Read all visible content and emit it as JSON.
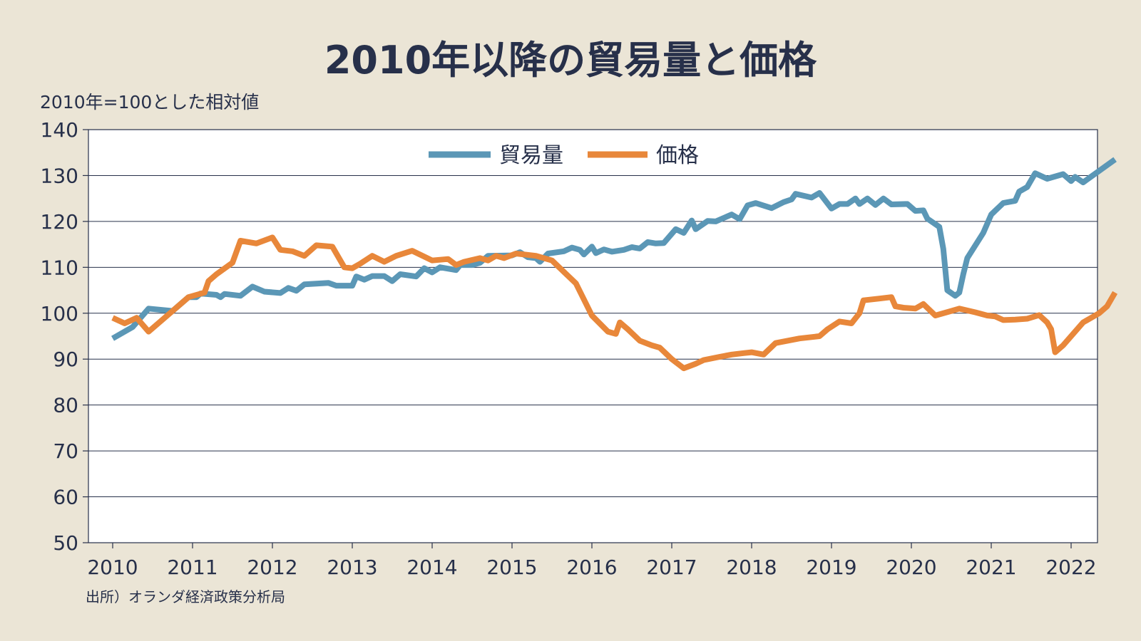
{
  "chart_data": {
    "type": "line",
    "title": "2010年以降の貿易量と価格",
    "ylabel": "2010年=100とした相対値",
    "source": "出所）オランダ経済政策分析局",
    "ylim": [
      50,
      140
    ],
    "xlim": [
      2010,
      2022
    ],
    "yticks": [
      50,
      60,
      70,
      80,
      90,
      100,
      110,
      120,
      130,
      140
    ],
    "xticks": [
      2010,
      2011,
      2012,
      2013,
      2014,
      2015,
      2016,
      2017,
      2018,
      2019,
      2020,
      2021,
      2022
    ],
    "grid": true,
    "legend_position": "top-center",
    "series": [
      {
        "name": "貿易量",
        "color": "#5b97b6",
        "points": [
          [
            2010.0,
            94.5
          ],
          [
            2010.25,
            97
          ],
          [
            2010.45,
            101
          ],
          [
            2010.75,
            100.5
          ],
          [
            2010.95,
            103.5
          ],
          [
            2011.05,
            103.5
          ],
          [
            2011.1,
            104.3
          ],
          [
            2011.3,
            104
          ],
          [
            2011.35,
            103.5
          ],
          [
            2011.4,
            104.2
          ],
          [
            2011.6,
            103.8
          ],
          [
            2011.75,
            105.8
          ],
          [
            2011.9,
            104.7
          ],
          [
            2012.1,
            104.4
          ],
          [
            2012.2,
            105.5
          ],
          [
            2012.3,
            104.9
          ],
          [
            2012.4,
            106.3
          ],
          [
            2012.7,
            106.6
          ],
          [
            2012.8,
            106
          ],
          [
            2013.0,
            106
          ],
          [
            2013.05,
            108
          ],
          [
            2013.15,
            107.3
          ],
          [
            2013.25,
            108.1
          ],
          [
            2013.4,
            108.1
          ],
          [
            2013.5,
            107
          ],
          [
            2013.6,
            108.5
          ],
          [
            2013.8,
            108
          ],
          [
            2013.9,
            109.8
          ],
          [
            2014.0,
            108.9
          ],
          [
            2014.1,
            110
          ],
          [
            2014.3,
            109.4
          ],
          [
            2014.35,
            110.5
          ],
          [
            2014.5,
            110.5
          ],
          [
            2014.6,
            111
          ],
          [
            2014.7,
            112.5
          ],
          [
            2015.0,
            112.6
          ],
          [
            2015.1,
            113.3
          ],
          [
            2015.2,
            112.2
          ],
          [
            2015.3,
            112
          ],
          [
            2015.35,
            111.2
          ],
          [
            2015.45,
            113
          ],
          [
            2015.65,
            113.5
          ],
          [
            2015.75,
            114.3
          ],
          [
            2015.85,
            113.8
          ],
          [
            2015.9,
            112.8
          ],
          [
            2016.0,
            114.5
          ],
          [
            2016.05,
            113.1
          ],
          [
            2016.15,
            113.9
          ],
          [
            2016.25,
            113.4
          ],
          [
            2016.4,
            113.8
          ],
          [
            2016.5,
            114.4
          ],
          [
            2016.6,
            114.1
          ],
          [
            2016.7,
            115.5
          ],
          [
            2016.8,
            115.2
          ],
          [
            2016.9,
            115.3
          ],
          [
            2017.05,
            118.3
          ],
          [
            2017.15,
            117.5
          ],
          [
            2017.25,
            120.2
          ],
          [
            2017.3,
            118.3
          ],
          [
            2017.45,
            120.1
          ],
          [
            2017.55,
            120
          ],
          [
            2017.75,
            121.5
          ],
          [
            2017.85,
            120.5
          ],
          [
            2017.95,
            123.5
          ],
          [
            2018.05,
            124
          ],
          [
            2018.25,
            122.9
          ],
          [
            2018.4,
            124.2
          ],
          [
            2018.5,
            124.8
          ],
          [
            2018.55,
            126
          ],
          [
            2018.75,
            125.2
          ],
          [
            2018.85,
            126.2
          ],
          [
            2019.0,
            122.8
          ],
          [
            2019.1,
            123.8
          ],
          [
            2019.2,
            123.8
          ],
          [
            2019.3,
            125
          ],
          [
            2019.35,
            123.8
          ],
          [
            2019.45,
            125
          ],
          [
            2019.55,
            123.6
          ],
          [
            2019.65,
            125
          ],
          [
            2019.75,
            123.7
          ],
          [
            2019.95,
            123.8
          ],
          [
            2020.05,
            122.3
          ],
          [
            2020.15,
            122.4
          ],
          [
            2020.2,
            120.6
          ],
          [
            2020.35,
            118.8
          ],
          [
            2020.4,
            114
          ],
          [
            2020.45,
            105
          ],
          [
            2020.55,
            103.8
          ],
          [
            2020.6,
            104.5
          ],
          [
            2020.65,
            108.5
          ],
          [
            2020.7,
            112
          ],
          [
            2020.9,
            117.5
          ],
          [
            2021.0,
            121.5
          ],
          [
            2021.15,
            124
          ],
          [
            2021.3,
            124.5
          ],
          [
            2021.35,
            126.5
          ],
          [
            2021.45,
            127.5
          ],
          [
            2021.55,
            130.5
          ],
          [
            2021.7,
            129.3
          ],
          [
            2021.9,
            130.3
          ],
          [
            2022.0,
            128.8
          ],
          [
            2022.05,
            129.7
          ],
          [
            2022.15,
            128.5
          ],
          [
            2022.35,
            131
          ],
          [
            2022.55,
            133.5
          ]
        ]
      },
      {
        "name": "価格",
        "color": "#e8873a",
        "points": [
          [
            2010.0,
            99
          ],
          [
            2010.15,
            97.8
          ],
          [
            2010.3,
            99
          ],
          [
            2010.45,
            96
          ],
          [
            2010.75,
            100.5
          ],
          [
            2010.95,
            103.5
          ],
          [
            2011.15,
            104.5
          ],
          [
            2011.2,
            107
          ],
          [
            2011.3,
            108.5
          ],
          [
            2011.5,
            111
          ],
          [
            2011.6,
            115.8
          ],
          [
            2011.8,
            115.2
          ],
          [
            2012.0,
            116.5
          ],
          [
            2012.1,
            113.8
          ],
          [
            2012.25,
            113.5
          ],
          [
            2012.4,
            112.5
          ],
          [
            2012.55,
            114.8
          ],
          [
            2012.75,
            114.5
          ],
          [
            2012.9,
            110
          ],
          [
            2013.0,
            109.8
          ],
          [
            2013.1,
            110.8
          ],
          [
            2013.25,
            112.5
          ],
          [
            2013.4,
            111.2
          ],
          [
            2013.55,
            112.5
          ],
          [
            2013.75,
            113.6
          ],
          [
            2014.0,
            111.5
          ],
          [
            2014.2,
            111.8
          ],
          [
            2014.3,
            110.5
          ],
          [
            2014.4,
            111.2
          ],
          [
            2014.6,
            112
          ],
          [
            2014.7,
            111.5
          ],
          [
            2014.8,
            112.5
          ],
          [
            2014.9,
            112
          ],
          [
            2015.05,
            113
          ],
          [
            2015.3,
            112.5
          ],
          [
            2015.5,
            111.5
          ],
          [
            2015.65,
            109
          ],
          [
            2015.8,
            106.5
          ],
          [
            2016.0,
            99.5
          ],
          [
            2016.2,
            96
          ],
          [
            2016.3,
            95.5
          ],
          [
            2016.35,
            98
          ],
          [
            2016.45,
            96.5
          ],
          [
            2016.6,
            94
          ],
          [
            2016.75,
            93
          ],
          [
            2016.85,
            92.5
          ],
          [
            2017.0,
            90
          ],
          [
            2017.15,
            88
          ],
          [
            2017.3,
            89
          ],
          [
            2017.4,
            89.8
          ],
          [
            2017.6,
            90.5
          ],
          [
            2017.75,
            91
          ],
          [
            2017.9,
            91.3
          ],
          [
            2018.0,
            91.5
          ],
          [
            2018.15,
            91
          ],
          [
            2018.3,
            93.5
          ],
          [
            2018.45,
            94
          ],
          [
            2018.6,
            94.5
          ],
          [
            2018.85,
            95
          ],
          [
            2018.95,
            96.5
          ],
          [
            2019.1,
            98.2
          ],
          [
            2019.25,
            97.8
          ],
          [
            2019.35,
            100
          ],
          [
            2019.4,
            102.8
          ],
          [
            2019.6,
            103.2
          ],
          [
            2019.75,
            103.5
          ],
          [
            2019.8,
            101.5
          ],
          [
            2019.9,
            101.2
          ],
          [
            2020.05,
            101
          ],
          [
            2020.15,
            102
          ],
          [
            2020.3,
            99.5
          ],
          [
            2020.5,
            100.5
          ],
          [
            2020.6,
            101
          ],
          [
            2020.8,
            100.2
          ],
          [
            2020.95,
            99.5
          ],
          [
            2021.05,
            99.3
          ],
          [
            2021.15,
            98.5
          ],
          [
            2021.3,
            98.6
          ],
          [
            2021.45,
            98.8
          ],
          [
            2021.6,
            99.6
          ],
          [
            2021.7,
            98
          ],
          [
            2021.75,
            96.5
          ],
          [
            2021.8,
            91.5
          ],
          [
            2021.9,
            93
          ],
          [
            2022.0,
            95
          ],
          [
            2022.15,
            98
          ],
          [
            2022.35,
            100
          ],
          [
            2022.45,
            101.5
          ],
          [
            2022.55,
            104.5
          ]
        ]
      }
    ]
  }
}
